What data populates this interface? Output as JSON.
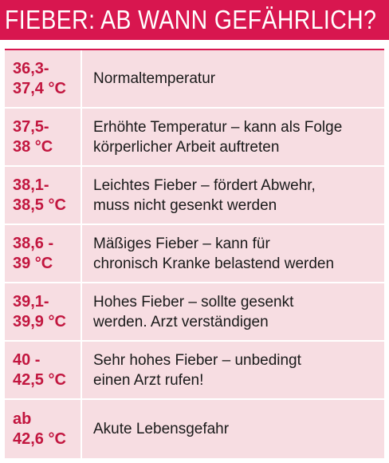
{
  "title": "FIEBER: AB WANN GEFÄHRLICH?",
  "colors": {
    "accent": "#d8164f",
    "row_background": "#f7dde2",
    "temperature_text": "#c2163f"
  },
  "rows": [
    {
      "temperature": "36,3-\n37,4 °C",
      "description": "Normaltemperatur"
    },
    {
      "temperature": "37,5-\n38 °C",
      "description": "Erhöhte Temperatur – kann als Folge\nkörperlicher Arbeit auftreten"
    },
    {
      "temperature": "38,1-\n38,5 °C",
      "description": "Leichtes Fieber – fördert Abwehr,\nmuss nicht gesenkt werden"
    },
    {
      "temperature": "38,6 -\n39 °C",
      "description": "Mäßiges Fieber – kann für\nchronisch Kranke belastend werden"
    },
    {
      "temperature": "39,1-\n39,9 °C",
      "description": "Hohes Fieber – sollte gesenkt\nwerden.  Arzt verständigen"
    },
    {
      "temperature": "40 -\n42,5 °C",
      "description": " Sehr hohes Fieber – unbedingt\neinen Arzt rufen!"
    },
    {
      "temperature": "ab\n42,6 °C",
      "description": "Akute Lebensgefahr"
    }
  ]
}
